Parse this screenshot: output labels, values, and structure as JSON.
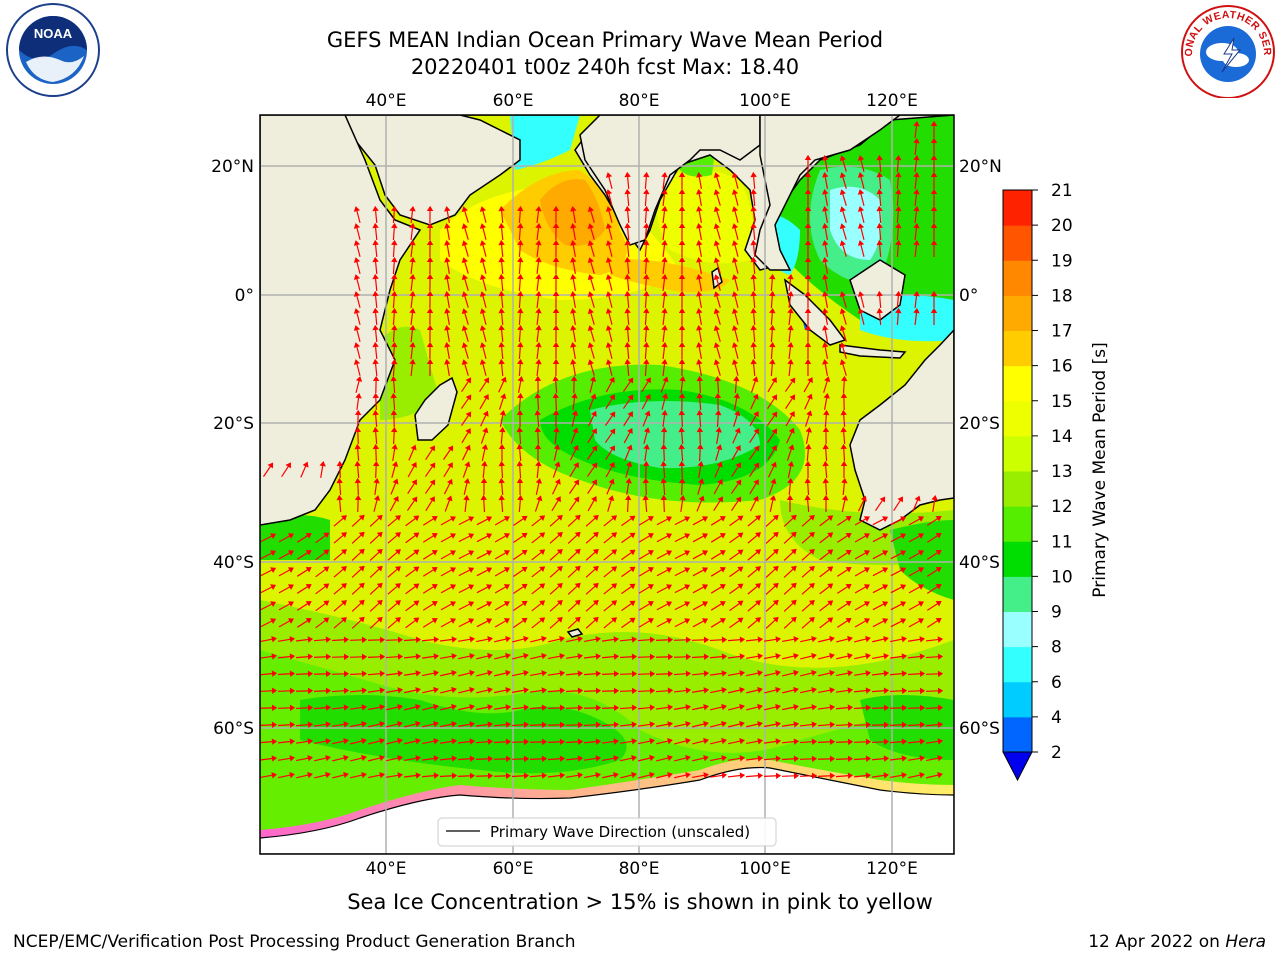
{
  "header": {
    "title_line1": "GEFS MEAN Indian Ocean Primary Wave Mean Period",
    "title_line2": "20220401 t00z 240h fcst   Max: 18.40"
  },
  "logos": {
    "left": {
      "icon": "noaa-logo",
      "text": "NOAA"
    },
    "right": {
      "icon": "national-weather-service-logo",
      "text": "NATIONAL WEATHER SERVICE"
    }
  },
  "map": {
    "lon_ticks": [
      "40°E",
      "60°E",
      "80°E",
      "100°E",
      "120°E"
    ],
    "lat_ticks": [
      "20°N",
      "0°",
      "20°S",
      "40°S",
      "60°S"
    ],
    "legend_label": "Primary Wave Direction (unscaled)",
    "arrow_color": "#ff0000",
    "land_color": "#efeedd"
  },
  "colorbar": {
    "label": "Primary Wave Mean Period [s]",
    "ticks": [
      "2",
      "4",
      "6",
      "8",
      "9",
      "10",
      "11",
      "12",
      "13",
      "14",
      "15",
      "16",
      "17",
      "18",
      "19",
      "20",
      "21"
    ],
    "colors": [
      "#0066ff",
      "#00ccff",
      "#33ffff",
      "#99ffff",
      "#44ee88",
      "#00dd00",
      "#55ee00",
      "#99ee00",
      "#ccff00",
      "#eeff00",
      "#ffff00",
      "#ffcc00",
      "#ffaa00",
      "#ff8800",
      "#ff5500",
      "#ff2200"
    ],
    "extend_color": "#0000ee"
  },
  "footer": {
    "note": "Sea Ice Concentration > 15% is shown in pink to yellow",
    "credit": "NCEP/EMC/Verification Post Processing Product Generation Branch",
    "date": "12 Apr 2022 on",
    "host": "Hera"
  }
}
